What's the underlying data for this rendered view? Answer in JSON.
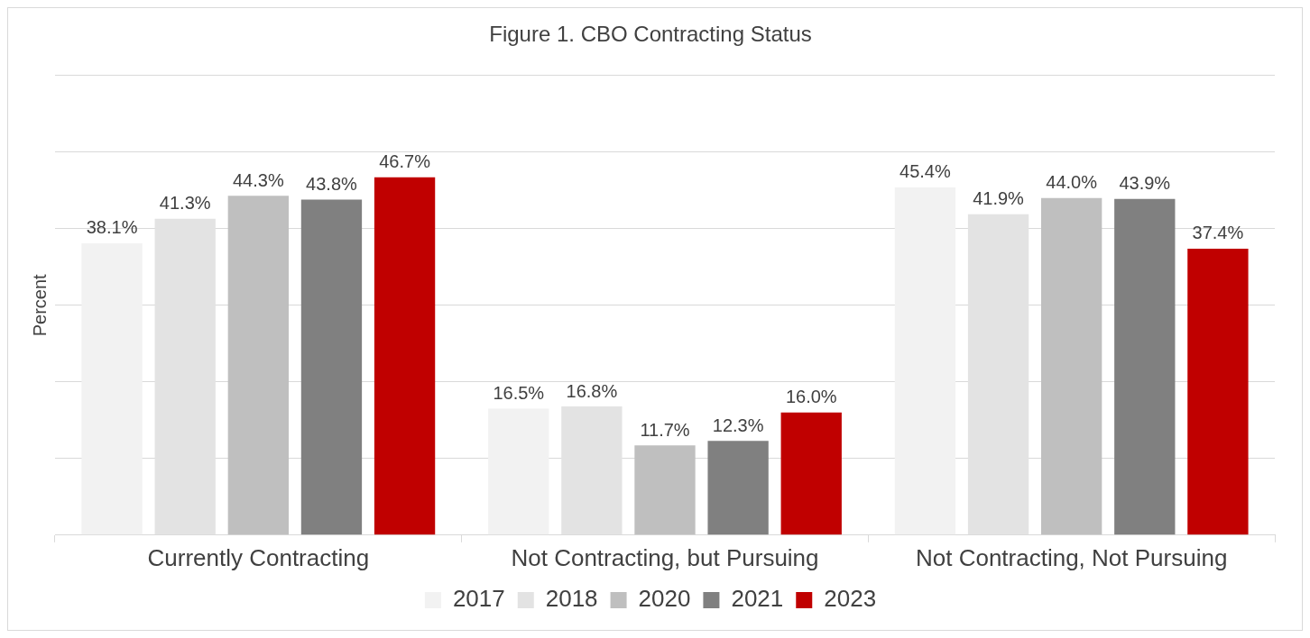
{
  "chart_data": {
    "type": "bar",
    "title": "Figure 1. CBO Contracting Status",
    "ylabel": "Percent",
    "categories": [
      "Currently Contracting",
      "Not Contracting, but Pursuing",
      "Not Contracting, Not Pursuing"
    ],
    "series": [
      {
        "name": "2017",
        "color": "#f2f2f2",
        "values": [
          38.1,
          16.5,
          45.4
        ],
        "value_labels": [
          "38.1%",
          "16.5%",
          "45.4%"
        ]
      },
      {
        "name": "2018",
        "color": "#e3e3e3",
        "values": [
          41.3,
          16.8,
          41.9
        ],
        "value_labels": [
          "41.3%",
          "16.8%",
          "41.9%"
        ]
      },
      {
        "name": "2020",
        "color": "#bfbfbf",
        "values": [
          44.3,
          11.7,
          44.0
        ],
        "value_labels": [
          "44.3%",
          "11.7%",
          "44.0%"
        ]
      },
      {
        "name": "2021",
        "color": "#808080",
        "values": [
          43.8,
          12.3,
          43.9
        ],
        "value_labels": [
          "43.8%",
          "12.3%",
          "43.9%"
        ]
      },
      {
        "name": "2023",
        "color": "#c00000",
        "values": [
          46.7,
          16.0,
          37.4
        ],
        "value_labels": [
          "46.7%",
          "16.0%",
          "37.4%"
        ]
      }
    ],
    "ylim": [
      0,
      60
    ],
    "yticks": [
      {
        "value": 0,
        "label": null
      },
      {
        "value": 10,
        "label": null
      },
      {
        "value": 20,
        "label": null
      },
      {
        "value": 30,
        "label": null
      },
      {
        "value": 40,
        "label": null
      },
      {
        "value": 50,
        "label": null
      },
      {
        "value": 60,
        "label": null
      }
    ],
    "grid": "y",
    "legend": "bottom",
    "tick_labels": "x"
  }
}
